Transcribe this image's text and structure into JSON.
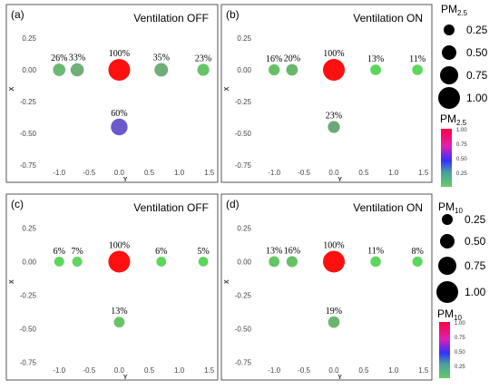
{
  "legends": {
    "pm25_size_title_main": "PM",
    "pm25_size_title_sub": "2.5",
    "pm10_size_title_main": "PM",
    "pm10_size_title_sub": "10",
    "size_labels": [
      "0.25",
      "0.50",
      "0.75",
      "1.00"
    ],
    "pm25_color_title_main": "PM",
    "pm25_color_title_sub": "2.5",
    "pm10_color_title_main": "PM",
    "pm10_color_title_sub": "10",
    "color_ticks": [
      "1.00",
      "0.75",
      "0.50",
      "0.25"
    ],
    "colors": {
      "high": "#ff0033",
      "mid": "#3333ff",
      "low": "#66cc66"
    }
  },
  "chart_data": [
    {
      "type": "scatter",
      "panel": "(a)",
      "title": "Ventilation OFF",
      "xlabel": "Y",
      "ylabel": "X",
      "xlim": [
        -1.2,
        1.55
      ],
      "ylim": [
        -0.8,
        0.3
      ],
      "xticks": [
        "-1.0",
        "-0.5",
        "0.0",
        "0.5",
        "1.0",
        "1.5"
      ],
      "yticks": [
        "0.25",
        "0.00",
        "-0.25",
        "-0.50",
        "-0.75"
      ],
      "points": [
        {
          "x": -1.0,
          "y": 0,
          "value": 0.26,
          "label": "26%",
          "color": "#6bb872"
        },
        {
          "x": -0.7,
          "y": 0,
          "value": 0.33,
          "label": "33%",
          "color": "#70b078"
        },
        {
          "x": 0.0,
          "y": 0,
          "value": 1.0,
          "label": "100%",
          "color": "#ff1010"
        },
        {
          "x": 0.7,
          "y": 0,
          "value": 0.35,
          "label": "35%",
          "color": "#70ae78"
        },
        {
          "x": 1.4,
          "y": 0,
          "value": 0.23,
          "label": "23%",
          "color": "#66c466"
        },
        {
          "x": 0.0,
          "y": -0.45,
          "value": 0.6,
          "label": "60%",
          "color": "#6a5acd"
        }
      ]
    },
    {
      "type": "scatter",
      "panel": "(b)",
      "title": "Ventilation ON",
      "xlabel": "Y",
      "ylabel": "X",
      "xlim": [
        -1.2,
        1.55
      ],
      "ylim": [
        -0.8,
        0.3
      ],
      "xticks": [
        "-1.0",
        "-0.5",
        "0.0",
        "0.5",
        "1.0",
        "1.5"
      ],
      "yticks": [
        "0.25",
        "0.00",
        "-0.25",
        "-0.50",
        "-0.75"
      ],
      "points": [
        {
          "x": -1.0,
          "y": 0,
          "value": 0.16,
          "label": "16%",
          "color": "#66c066"
        },
        {
          "x": -0.7,
          "y": 0,
          "value": 0.2,
          "label": "20%",
          "color": "#6ab66c"
        },
        {
          "x": 0.0,
          "y": 0,
          "value": 1.0,
          "label": "100%",
          "color": "#ff1010"
        },
        {
          "x": 0.7,
          "y": 0,
          "value": 0.13,
          "label": "13%",
          "color": "#5cd65c"
        },
        {
          "x": 1.4,
          "y": 0,
          "value": 0.11,
          "label": "11%",
          "color": "#5cd65c"
        },
        {
          "x": 0.0,
          "y": -0.45,
          "value": 0.23,
          "label": "23%",
          "color": "#6aa877"
        }
      ]
    },
    {
      "type": "scatter",
      "panel": "(c)",
      "title": "Ventilation OFF",
      "xlabel": "Y",
      "ylabel": "X",
      "xlim": [
        -1.2,
        1.55
      ],
      "ylim": [
        -0.8,
        0.3
      ],
      "xticks": [
        "-1.0",
        "-0.5",
        "0.0",
        "0.5",
        "1.0",
        "1.5"
      ],
      "yticks": [
        "0.25",
        "0.00",
        "-0.25",
        "-0.50",
        "-0.75"
      ],
      "points": [
        {
          "x": -1.0,
          "y": 0,
          "value": 0.06,
          "label": "6%",
          "color": "#5cd65c"
        },
        {
          "x": -0.7,
          "y": 0,
          "value": 0.07,
          "label": "7%",
          "color": "#5cd65c"
        },
        {
          "x": 0.0,
          "y": 0,
          "value": 1.0,
          "label": "100%",
          "color": "#ff1010"
        },
        {
          "x": 0.7,
          "y": 0,
          "value": 0.06,
          "label": "6%",
          "color": "#5cd65c"
        },
        {
          "x": 1.4,
          "y": 0,
          "value": 0.05,
          "label": "5%",
          "color": "#5cd65c"
        },
        {
          "x": 0.0,
          "y": -0.45,
          "value": 0.13,
          "label": "13%",
          "color": "#66c466"
        }
      ]
    },
    {
      "type": "scatter",
      "panel": "(d)",
      "title": "Ventilation ON",
      "xlabel": "Y",
      "ylabel": "X",
      "xlim": [
        -1.2,
        1.55
      ],
      "ylim": [
        -0.8,
        0.3
      ],
      "xticks": [
        "-1.0",
        "-0.5",
        "0.0",
        "0.5",
        "1.0",
        "1.5"
      ],
      "yticks": [
        "0.25",
        "0.00",
        "-0.25",
        "-0.50",
        "-0.75"
      ],
      "points": [
        {
          "x": -1.0,
          "y": 0,
          "value": 0.13,
          "label": "13%",
          "color": "#62c866"
        },
        {
          "x": -0.7,
          "y": 0,
          "value": 0.16,
          "label": "16%",
          "color": "#66c066"
        },
        {
          "x": 0.0,
          "y": 0,
          "value": 1.0,
          "label": "100%",
          "color": "#ff1010"
        },
        {
          "x": 0.7,
          "y": 0,
          "value": 0.11,
          "label": "11%",
          "color": "#5cd65c"
        },
        {
          "x": 1.4,
          "y": 0,
          "value": 0.08,
          "label": "8%",
          "color": "#5cd65c"
        },
        {
          "x": 0.0,
          "y": -0.45,
          "value": 0.19,
          "label": "19%",
          "color": "#6ab66c"
        }
      ]
    }
  ]
}
